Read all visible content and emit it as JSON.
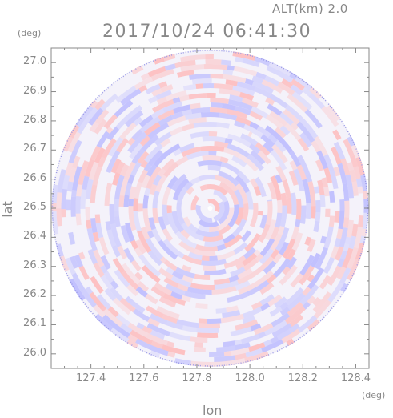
{
  "chart_data": {
    "type": "heatmap",
    "title": "2017/10/24 06:41:30",
    "supertitle": "ALT(km) 2.0",
    "xlabel": "lon",
    "ylabel": "lat",
    "x_unit": "(deg)",
    "y_unit": "(deg)",
    "xlim": [
      127.25,
      128.45
    ],
    "ylim": [
      25.95,
      27.05
    ],
    "xticks": [
      "127.4",
      "127.6",
      "127.8",
      "128.0",
      "128.2",
      "128.4"
    ],
    "xtick_values": [
      127.4,
      127.6,
      127.8,
      128.0,
      128.2,
      128.4
    ],
    "yticks": [
      "26.0",
      "26.1",
      "26.2",
      "26.3",
      "26.4",
      "26.5",
      "26.6",
      "26.7",
      "26.8",
      "26.9",
      "27.0"
    ],
    "ytick_values": [
      26.0,
      26.1,
      26.2,
      26.3,
      26.4,
      26.5,
      26.6,
      26.7,
      26.8,
      26.9,
      27.0
    ],
    "radar_center": [
      127.85,
      26.5
    ],
    "positive_color": "#ffb4b4",
    "negative_color": "#b4b4ff",
    "axis_color": "#888888"
  }
}
